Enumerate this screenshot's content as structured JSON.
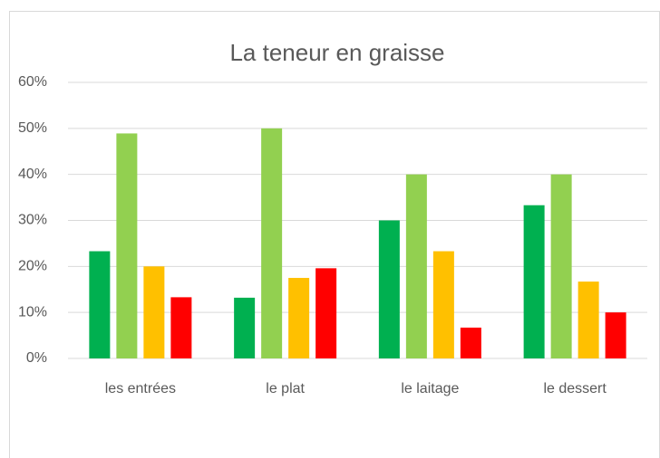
{
  "chart_data": {
    "type": "bar",
    "title": "La teneur en graisse",
    "categories": [
      "les entrées",
      "le plat",
      "le laitage",
      "le dessert"
    ],
    "series": [
      {
        "color": "#00b050",
        "values": [
          23.3,
          13.2,
          30,
          33.3
        ]
      },
      {
        "color": "#92d050",
        "values": [
          48.9,
          50,
          40,
          40
        ]
      },
      {
        "color": "#ffc000",
        "values": [
          20,
          17.5,
          23.3,
          16.7
        ]
      },
      {
        "color": "#ff0000",
        "values": [
          13.3,
          19.6,
          6.7,
          10
        ]
      }
    ],
    "ylim": [
      0,
      60
    ],
    "yticks": [
      {
        "value": 0,
        "label": "0%"
      },
      {
        "value": 10,
        "label": "10%"
      },
      {
        "value": 20,
        "label": "20%"
      },
      {
        "value": 30,
        "label": "30%"
      },
      {
        "value": 40,
        "label": "40%"
      },
      {
        "value": 50,
        "label": "50%"
      },
      {
        "value": 60,
        "label": "60%"
      }
    ],
    "grid": true
  }
}
